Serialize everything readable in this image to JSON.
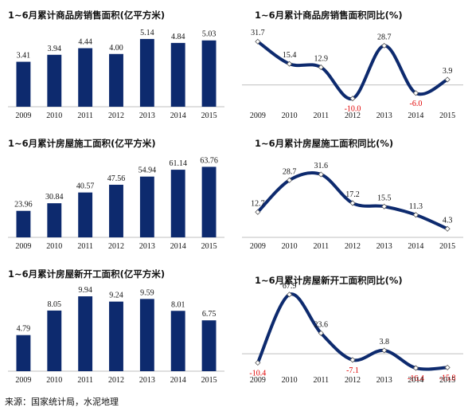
{
  "chart_data": [
    {
      "type": "bar",
      "title": "1~6月累计商品房销售面积(亿平方米)",
      "categories": [
        "2009",
        "2010",
        "2011",
        "2012",
        "2013",
        "2014",
        "2015"
      ],
      "values": [
        3.41,
        3.94,
        4.44,
        4.0,
        5.14,
        4.84,
        5.03
      ],
      "labels": [
        "3.41",
        "3.94",
        "4.44",
        "4.00",
        "5.14",
        "4.84",
        "5.03"
      ],
      "ylim": [
        0,
        5.8
      ],
      "bar_color": "#0d2a6e",
      "grid": false
    },
    {
      "type": "line",
      "title": "1~6月累计商品房销售面积同比(%)",
      "categories": [
        "2009",
        "2010",
        "2011",
        "2012",
        "2013",
        "2014",
        "2015"
      ],
      "values": [
        31.7,
        15.4,
        12.9,
        -10.0,
        28.7,
        -6.0,
        3.9
      ],
      "labels": [
        "31.7",
        "15.4",
        "12.9",
        "-10.0",
        "28.7",
        "-6.0",
        "3.9"
      ],
      "ylim": [
        -16,
        40
      ],
      "line_color": "#0d2a6e",
      "negative_label_color": "#e00000",
      "grid": false
    },
    {
      "type": "bar",
      "title": "1~6月累计房屋施工面积(亿平方米)",
      "categories": [
        "2009",
        "2010",
        "2011",
        "2012",
        "2013",
        "2014",
        "2015"
      ],
      "values": [
        23.96,
        30.84,
        40.57,
        47.56,
        54.94,
        61.14,
        63.76
      ],
      "labels": [
        "23.96",
        "30.84",
        "40.57",
        "47.56",
        "54.94",
        "61.14",
        "63.76"
      ],
      "ylim": [
        0,
        72
      ],
      "bar_color": "#0d2a6e",
      "grid": false
    },
    {
      "type": "line",
      "title": "1~6月累计房屋施工面积同比(%)",
      "categories": [
        "2009",
        "2010",
        "2011",
        "2012",
        "2013",
        "2014",
        "2015"
      ],
      "values": [
        12.7,
        28.7,
        31.6,
        17.2,
        15.5,
        11.3,
        4.3
      ],
      "labels": [
        "12.7",
        "28.7",
        "31.6",
        "17.2",
        "15.5",
        "11.3",
        "4.3"
      ],
      "ylim": [
        0,
        40
      ],
      "line_color": "#0d2a6e",
      "negative_label_color": "#e00000",
      "grid": false
    },
    {
      "type": "bar",
      "title": "1~6月累计房屋新开工面积(亿平方米)",
      "categories": [
        "2009",
        "2010",
        "2011",
        "2012",
        "2013",
        "2014",
        "2015"
      ],
      "values": [
        4.79,
        8.05,
        9.94,
        9.24,
        9.59,
        8.01,
        6.75
      ],
      "labels": [
        "4.79",
        "8.05",
        "9.94",
        "9.24",
        "9.59",
        "8.01",
        "6.75"
      ],
      "ylim": [
        0,
        11
      ],
      "bar_color": "#0d2a6e",
      "grid": false
    },
    {
      "type": "line",
      "title": "1~6月累计房屋新开工面积同比(%)",
      "categories": [
        "2009",
        "2010",
        "2011",
        "2012",
        "2013",
        "2014",
        "2015"
      ],
      "values": [
        -10.4,
        67.9,
        23.6,
        -7.1,
        3.8,
        -16.4,
        -15.8
      ],
      "labels": [
        "-10.4",
        "67.9",
        "23.6",
        "-7.1",
        "3.8",
        "-16.4",
        "-15.8"
      ],
      "ylim": [
        -20,
        75
      ],
      "line_color": "#0d2a6e",
      "negative_label_color": "#e00000",
      "grid": false
    }
  ],
  "footer": "来源：国家统计局，水泥地理",
  "watermark": "水泥地理 www.dcement.com"
}
